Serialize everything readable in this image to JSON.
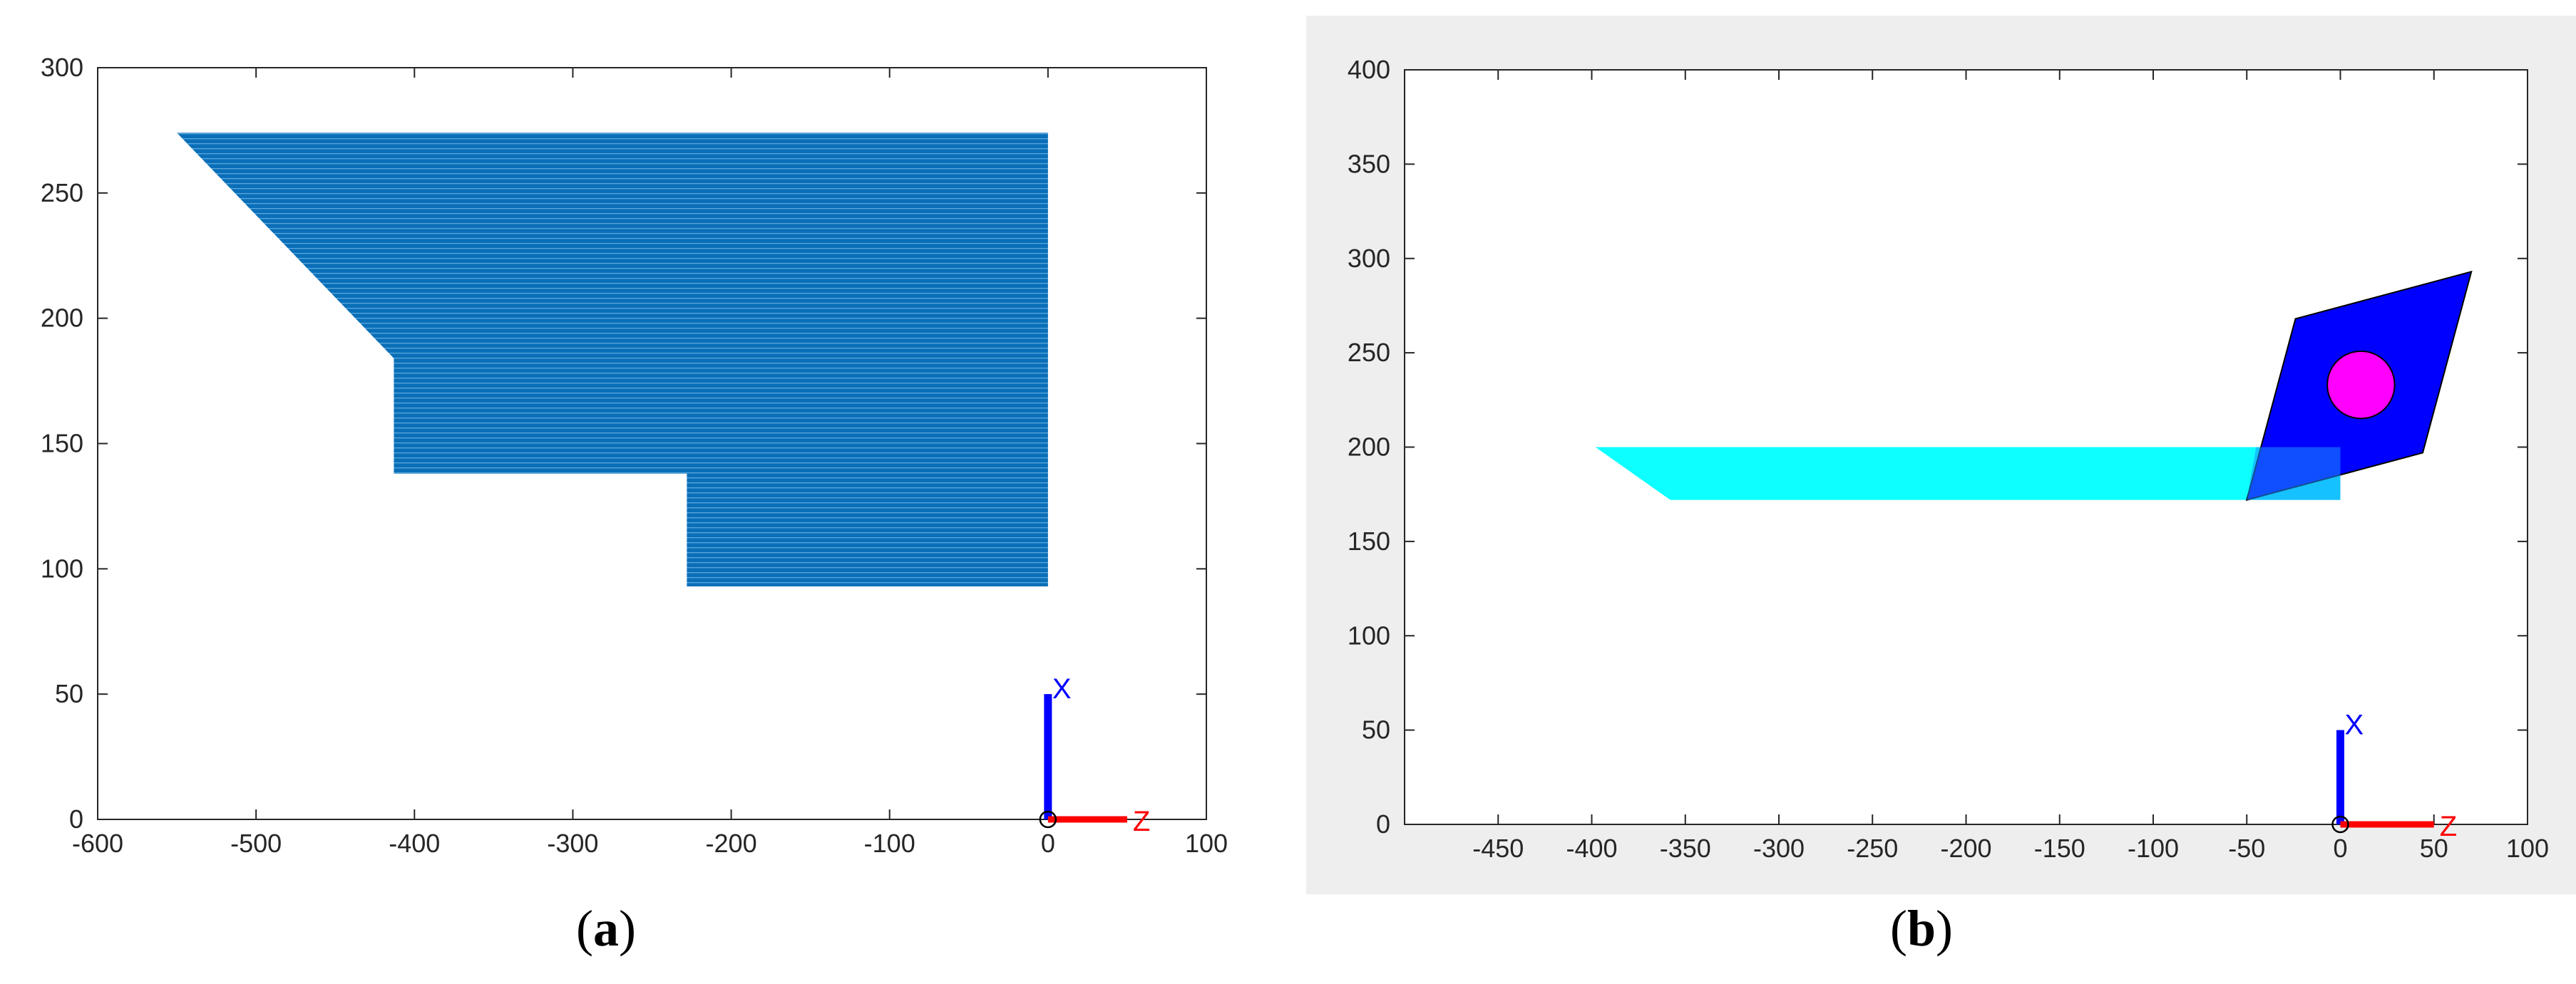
{
  "chart_data": [
    {
      "type": "area",
      "panel_label": "a",
      "xlim": [
        -600,
        100
      ],
      "ylim": [
        0,
        300
      ],
      "xticks": [
        -600,
        -500,
        -400,
        -300,
        -200,
        -100,
        0,
        100
      ],
      "yticks": [
        0,
        50,
        100,
        150,
        200,
        250,
        300
      ],
      "grid": false,
      "series": [
        {
          "fill_color": "#0072bd",
          "polygon": [
            [
              -550,
              274
            ],
            [
              0,
              274
            ],
            [
              0,
              93
            ],
            [
              -228,
              93
            ],
            [
              -228,
              138
            ],
            [
              -413,
              138
            ],
            [
              -413,
              184
            ]
          ]
        }
      ],
      "axis_triad": {
        "origin": [
          0,
          0
        ],
        "x_label": "X",
        "z_label": "Z",
        "x_color": "#0000ff",
        "z_color": "#ff0000",
        "x_length": 50,
        "z_length": 50
      }
    },
    {
      "type": "area",
      "panel_label": "b",
      "xlim": [
        -500,
        100
      ],
      "ylim": [
        0,
        400
      ],
      "xticks": [
        -450,
        -400,
        -350,
        -300,
        -250,
        -200,
        -150,
        -100,
        -50,
        0,
        50,
        100
      ],
      "yticks": [
        0,
        50,
        100,
        150,
        200,
        250,
        300,
        350,
        400
      ],
      "grid": false,
      "background": "#eeeeee",
      "series": [
        {
          "fill_color": "#00ffff",
          "polygon": [
            [
              -398,
              200
            ],
            [
              0,
              200
            ],
            [
              0,
              172
            ],
            [
              -358,
              172
            ]
          ]
        },
        {
          "fill_color": "#0000ff",
          "polygon": [
            [
              -50,
              172
            ],
            [
              44,
              197
            ],
            [
              70,
              293
            ],
            [
              -24,
              268
            ]
          ]
        },
        {
          "shape": "circle",
          "fill_color": "#ff00ff",
          "center": [
            11,
            233
          ],
          "radius": 18
        }
      ],
      "axis_triad": {
        "origin": [
          0,
          0
        ],
        "x_label": "X",
        "z_label": "Z",
        "x_color": "#0000ff",
        "z_color": "#ff0000",
        "x_length": 50,
        "z_length": 50
      }
    }
  ],
  "captions": {
    "a_open": "(",
    "a_letter": "a",
    "a_close": ")",
    "b_open": "(",
    "b_letter": "b",
    "b_close": ")"
  }
}
